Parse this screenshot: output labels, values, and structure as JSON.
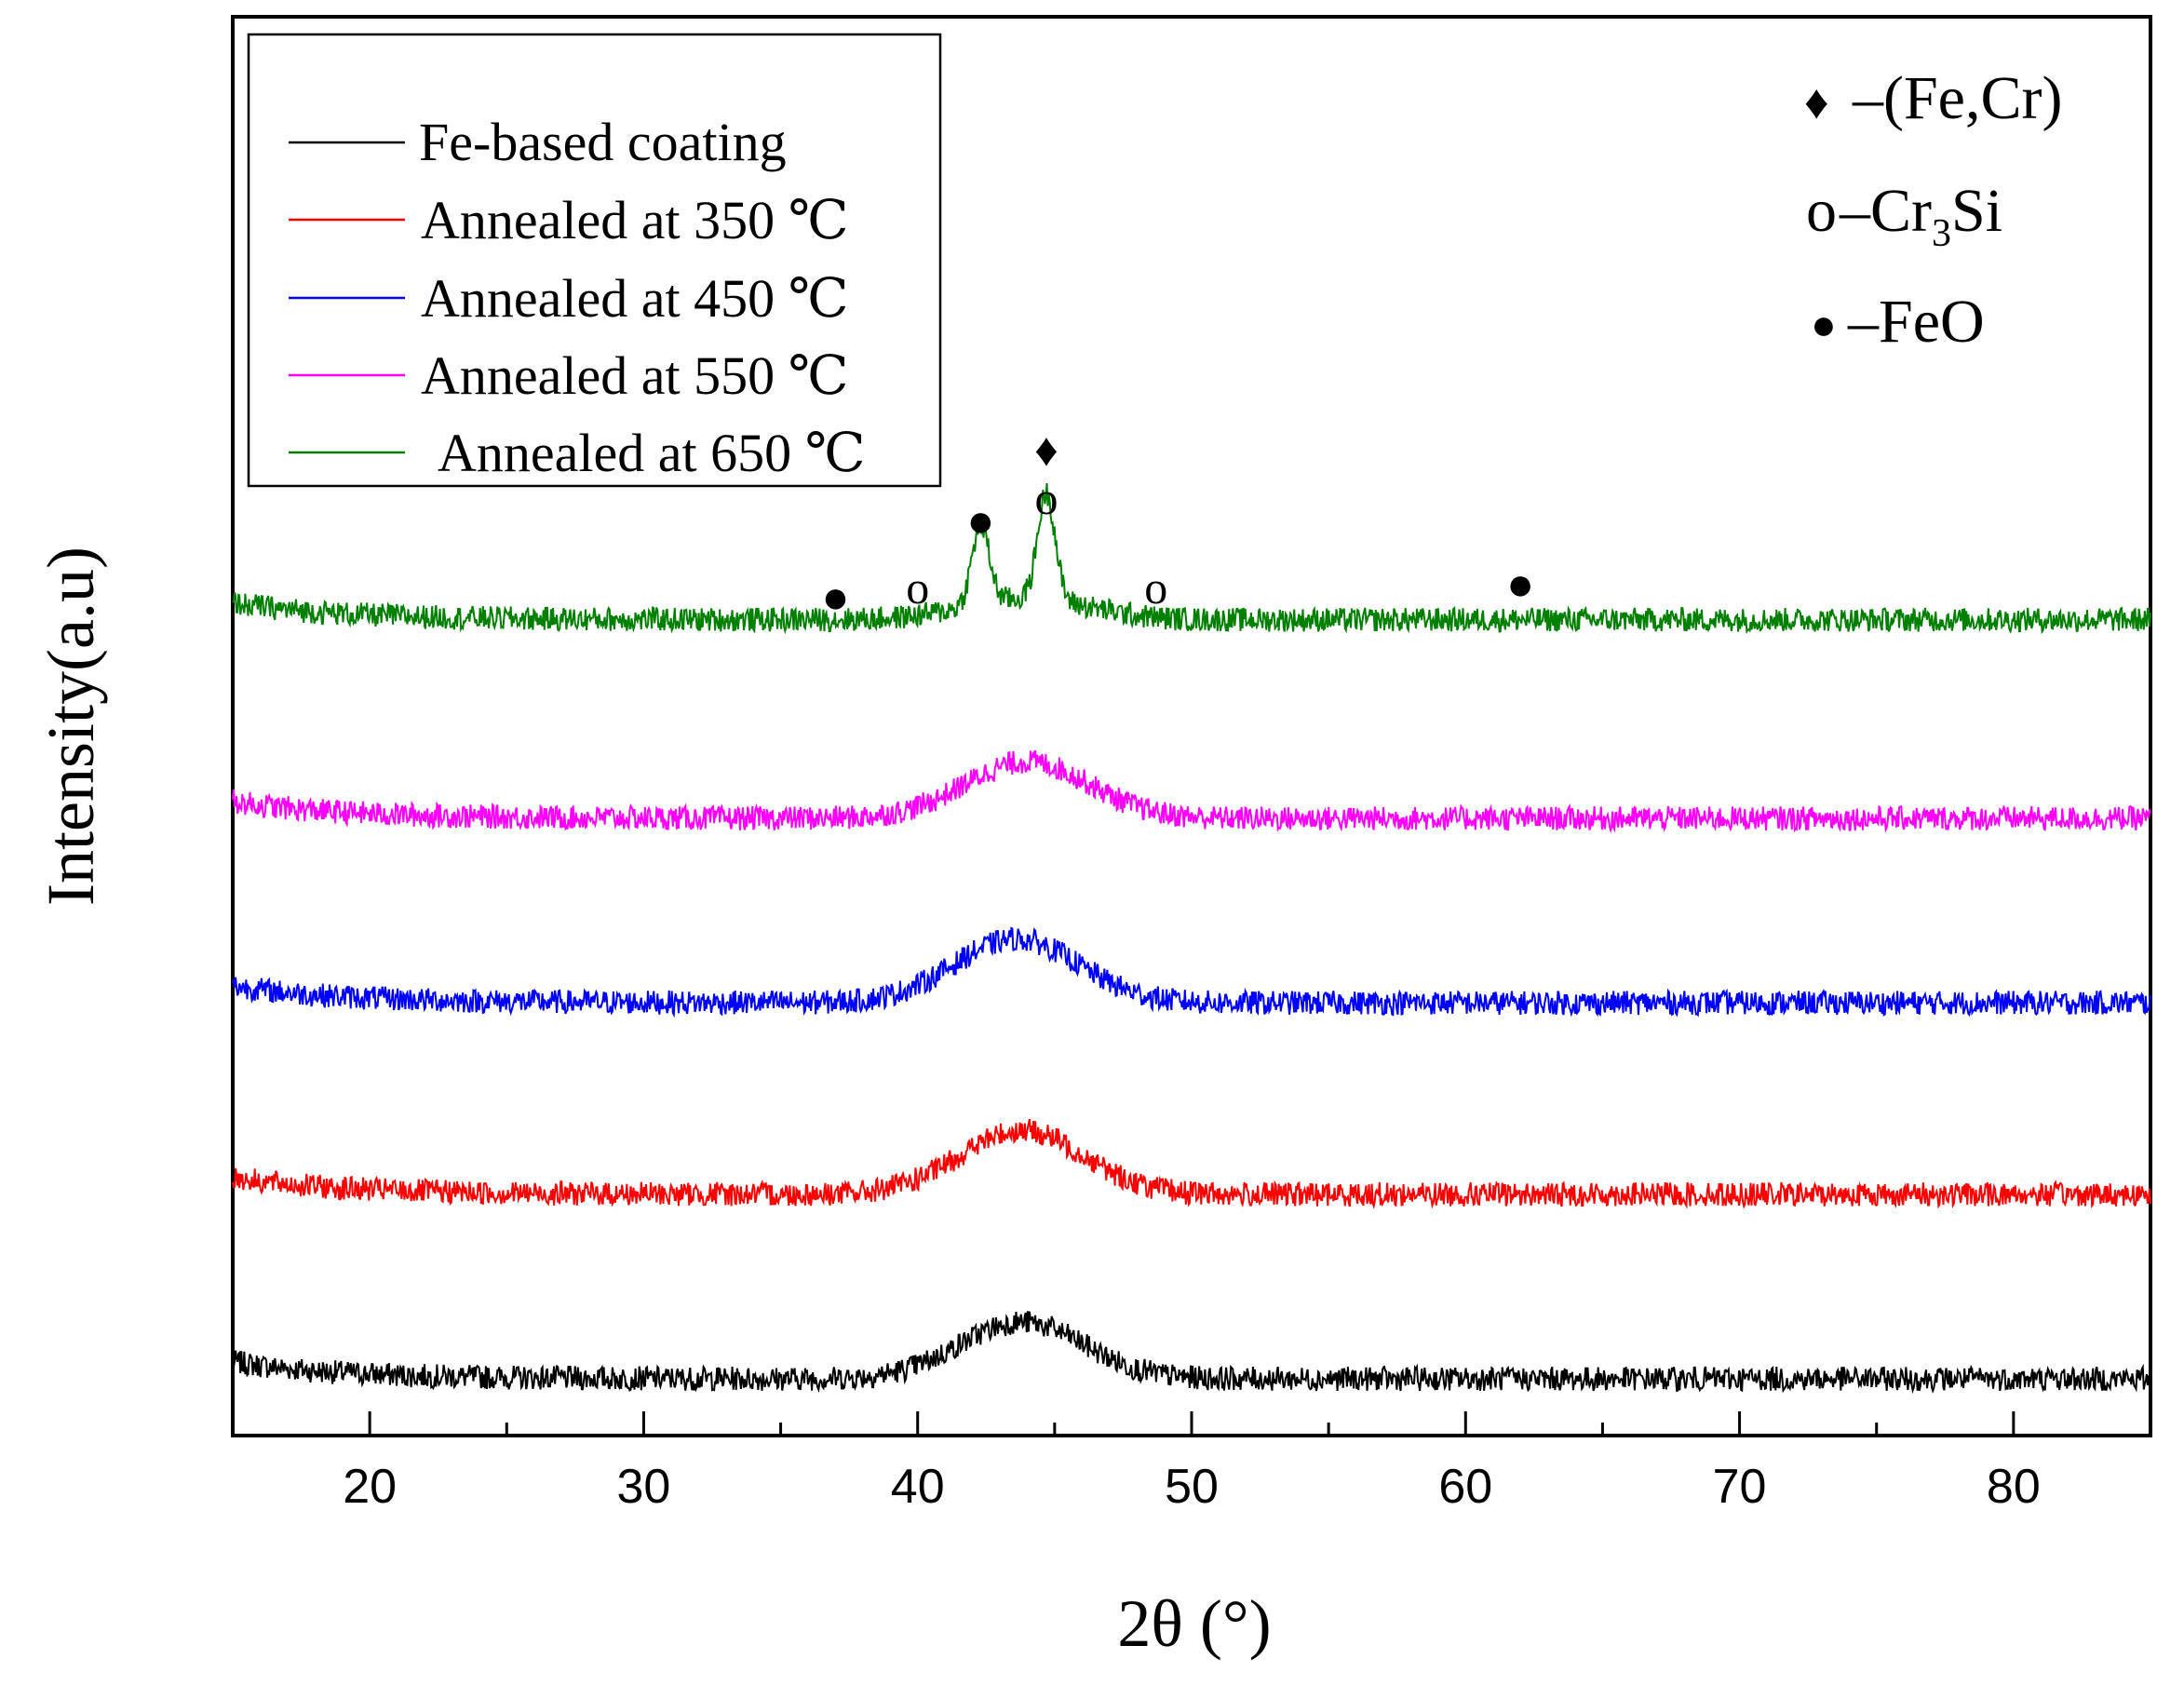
{
  "chart_data": {
    "type": "line",
    "xlabel": "2θ (°)",
    "ylabel": "Intensity(a.u)",
    "xlim": [
      15,
      85
    ],
    "x_ticks": [
      20,
      30,
      40,
      50,
      60,
      70,
      80
    ],
    "x_tick_labels": [
      "20",
      "30",
      "40",
      "50",
      "60",
      "70",
      "80"
    ],
    "ylim": [
      0,
      10
    ],
    "y_ticks_shown": false,
    "legend_position": "top-left",
    "series": [
      {
        "name": "Fe-based coating",
        "color": "#000000",
        "offset": 0.4,
        "hump_center": 43.8,
        "hump_height": 0.4,
        "peaks": []
      },
      {
        "name": "Annealed at 350 ℃",
        "color": "#ff0000",
        "offset": 1.7,
        "hump_center": 43.8,
        "hump_height": 0.45,
        "peaks": []
      },
      {
        "name": "Annealed at 450 ℃",
        "color": "#0000ff",
        "offset": 3.05,
        "hump_center": 43.6,
        "hump_height": 0.45,
        "peaks": []
      },
      {
        "name": "Annealed at 550 ℃",
        "color": "#ff00ff",
        "offset": 4.35,
        "hump_center": 44.0,
        "hump_height": 0.4,
        "peaks": []
      },
      {
        "name": "Annealed at 650 ℃",
        "color": "#008000",
        "offset": 5.75,
        "hump_center": 44.0,
        "hump_height": 0.15,
        "peaks": [
          {
            "x": 42.3,
            "height": 0.55
          },
          {
            "x": 44.7,
            "height": 0.75
          }
        ]
      }
    ],
    "phase_legend": [
      {
        "symbol": "♦",
        "label": "–(Fe,Cr)"
      },
      {
        "symbol": "o",
        "label": "–Cr",
        "sub": "3",
        "suffix": "Si"
      },
      {
        "symbol": "●",
        "label": "–FeO"
      }
    ],
    "peak_markers": [
      {
        "x": 37.0,
        "symbol": "●",
        "phase": "FeO"
      },
      {
        "x": 40.0,
        "symbol": "o",
        "phase": "Cr3Si"
      },
      {
        "x": 42.3,
        "symbol": "●",
        "phase": "FeO"
      },
      {
        "x": 44.7,
        "symbol": "o",
        "phase": "Cr3Si"
      },
      {
        "x": 44.7,
        "symbol": "♦",
        "phase": "(Fe,Cr)"
      },
      {
        "x": 48.7,
        "symbol": "o",
        "phase": "Cr3Si"
      },
      {
        "x": 62.0,
        "symbol": "●",
        "phase": "FeO"
      }
    ]
  }
}
